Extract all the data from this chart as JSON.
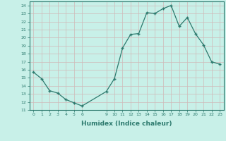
{
  "x": [
    0,
    1,
    2,
    3,
    4,
    5,
    6,
    9,
    10,
    11,
    12,
    13,
    14,
    15,
    16,
    17,
    18,
    19,
    20,
    21,
    22,
    23
  ],
  "y": [
    15.7,
    14.9,
    13.4,
    13.1,
    12.3,
    11.9,
    11.5,
    13.3,
    14.9,
    18.7,
    20.4,
    20.5,
    23.1,
    23.0,
    23.6,
    24.0,
    21.4,
    22.5,
    20.5,
    19.1,
    17.0,
    16.7
  ],
  "xlim": [
    -0.5,
    23.5
  ],
  "ylim": [
    11,
    24.5
  ],
  "yticks": [
    11,
    12,
    13,
    14,
    15,
    16,
    17,
    18,
    19,
    20,
    21,
    22,
    23,
    24
  ],
  "xticks": [
    0,
    1,
    2,
    3,
    4,
    5,
    6,
    9,
    10,
    11,
    12,
    13,
    14,
    15,
    16,
    17,
    18,
    19,
    20,
    21,
    22,
    23
  ],
  "xlabel": "Humidex (Indice chaleur)",
  "line_color": "#2d7a6e",
  "bg_color": "#c8f0e8",
  "grid_color": "#d0b8b8",
  "spine_color": "#2d7a6e"
}
